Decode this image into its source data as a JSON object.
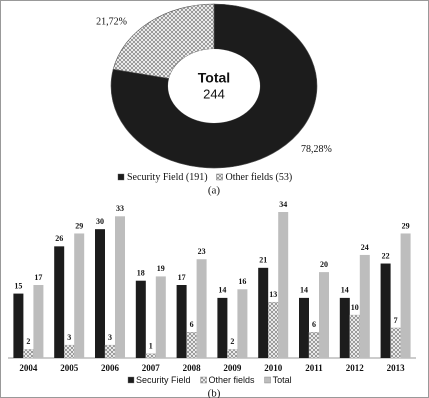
{
  "chart_data": [
    {
      "type": "pie",
      "center_title": "Total",
      "center_value": 244,
      "labels": [
        "Security Field (191)",
        "Other fields (53)"
      ],
      "values": [
        78.28,
        21.72
      ],
      "value_labels": [
        "78,28%",
        "21,72%"
      ],
      "colors": [
        "#1c1c1c",
        "hatch"
      ],
      "caption": "(a)"
    },
    {
      "type": "bar",
      "categories": [
        "2004",
        "2005",
        "2006",
        "2007",
        "2008",
        "2009",
        "2010",
        "2011",
        "2012",
        "2013"
      ],
      "series": [
        {
          "name": "Security Field",
          "color": "#1c1c1c",
          "values": [
            15,
            26,
            30,
            18,
            17,
            14,
            21,
            14,
            14,
            22
          ]
        },
        {
          "name": "Other fields",
          "color": "hatch",
          "values": [
            2,
            3,
            3,
            1,
            6,
            2,
            13,
            6,
            10,
            7
          ]
        },
        {
          "name": "Total",
          "color": "#bdbdbd",
          "values": [
            17,
            29,
            33,
            19,
            23,
            16,
            34,
            20,
            24,
            29
          ]
        }
      ],
      "caption": "(b)"
    }
  ]
}
